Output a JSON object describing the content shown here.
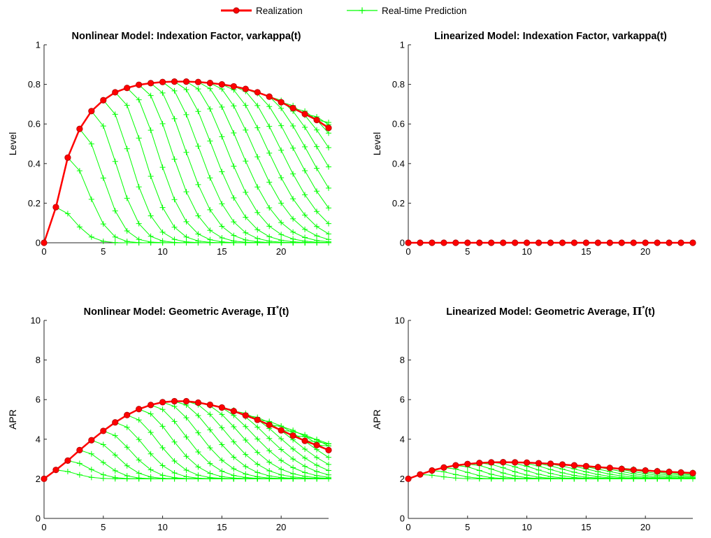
{
  "legend": {
    "realization_label": "Realization",
    "prediction_label": "Real-time Prediction"
  },
  "colors": {
    "realization": "#ff0000",
    "realization_marker_edge": "#b00000",
    "prediction": "#00ff00",
    "axis": "#262626"
  },
  "chart_data": [
    {
      "type": "line",
      "title": "Nonlinear Model: Indexation Factor, varkappa(t)",
      "xlabel": "",
      "ylabel": "Level",
      "xlim": [
        0,
        24
      ],
      "ylim": [
        0,
        1
      ],
      "xticks": [
        0,
        5,
        10,
        15,
        20
      ],
      "yticks": [
        0,
        0.2,
        0.4,
        0.6,
        0.8,
        1
      ],
      "ytick_labels": [
        "0",
        "0.2",
        "0.4",
        "0.6",
        "0.8",
        "1"
      ],
      "grid": false,
      "x": [
        0,
        1,
        2,
        3,
        4,
        5,
        6,
        7,
        8,
        9,
        10,
        11,
        12,
        13,
        14,
        15,
        16,
        17,
        18,
        19,
        20,
        21,
        22,
        23,
        24
      ],
      "series": [
        {
          "name": "Realization",
          "values": [
            0,
            0.18,
            0.43,
            0.575,
            0.665,
            0.72,
            0.76,
            0.782,
            0.798,
            0.806,
            0.812,
            0.814,
            0.814,
            0.812,
            0.807,
            0.8,
            0.79,
            0.777,
            0.76,
            0.738,
            0.71,
            0.68,
            0.65,
            0.62,
            0.58
          ]
        }
      ],
      "predictions": {
        "name": "Real-time Prediction",
        "shape": "hump",
        "floor": 0,
        "count": 23
      }
    },
    {
      "type": "line",
      "title": "Linearized Model: Indexation Factor, varkappa(t)",
      "xlabel": "",
      "ylabel": "Level",
      "xlim": [
        0,
        24
      ],
      "ylim": [
        0,
        1
      ],
      "xticks": [
        0,
        5,
        10,
        15,
        20
      ],
      "yticks": [
        0,
        0.2,
        0.4,
        0.6,
        0.8,
        1
      ],
      "ytick_labels": [
        "0",
        "0.2",
        "0.4",
        "0.6",
        "0.8",
        "1"
      ],
      "grid": false,
      "x": [
        0,
        1,
        2,
        3,
        4,
        5,
        6,
        7,
        8,
        9,
        10,
        11,
        12,
        13,
        14,
        15,
        16,
        17,
        18,
        19,
        20,
        21,
        22,
        23,
        24
      ],
      "series": [
        {
          "name": "Realization",
          "values": [
            0,
            0,
            0,
            0,
            0,
            0,
            0,
            0,
            0,
            0,
            0,
            0,
            0,
            0,
            0,
            0,
            0,
            0,
            0,
            0,
            0,
            0,
            0,
            0,
            0
          ]
        }
      ],
      "predictions": {
        "name": "Real-time Prediction",
        "shape": "flat",
        "floor": 0,
        "count": 23
      }
    },
    {
      "type": "line",
      "title": "Nonlinear Model: Geometric Average, Π*(t)",
      "xlabel": "",
      "ylabel": "APR",
      "xlim": [
        0,
        24
      ],
      "ylim": [
        0,
        10
      ],
      "xticks": [
        0,
        5,
        10,
        15,
        20
      ],
      "yticks": [
        0,
        2,
        4,
        6,
        8,
        10
      ],
      "ytick_labels": [
        "0",
        "2",
        "4",
        "6",
        "8",
        "10"
      ],
      "grid": false,
      "x": [
        0,
        1,
        2,
        3,
        4,
        5,
        6,
        7,
        8,
        9,
        10,
        11,
        12,
        13,
        14,
        15,
        16,
        17,
        18,
        19,
        20,
        21,
        22,
        23,
        24
      ],
      "series": [
        {
          "name": "Realization",
          "values": [
            2.0,
            2.45,
            2.92,
            3.45,
            3.95,
            4.42,
            4.85,
            5.22,
            5.52,
            5.73,
            5.87,
            5.92,
            5.92,
            5.85,
            5.74,
            5.6,
            5.42,
            5.2,
            4.98,
            4.72,
            4.45,
            4.18,
            3.92,
            3.7,
            3.45
          ]
        }
      ],
      "predictions": {
        "name": "Real-time Prediction",
        "shape": "hump",
        "floor": 2.0,
        "count": 23
      }
    },
    {
      "type": "line",
      "title": "Linearized Model: Geometric Average, Π*(t)",
      "xlabel": "",
      "ylabel": "APR",
      "xlim": [
        0,
        24
      ],
      "ylim": [
        0,
        10
      ],
      "xticks": [
        0,
        5,
        10,
        15,
        20
      ],
      "yticks": [
        0,
        2,
        4,
        6,
        8,
        10
      ],
      "ytick_labels": [
        "0",
        "2",
        "4",
        "6",
        "8",
        "10"
      ],
      "grid": false,
      "x": [
        0,
        1,
        2,
        3,
        4,
        5,
        6,
        7,
        8,
        9,
        10,
        11,
        12,
        13,
        14,
        15,
        16,
        17,
        18,
        19,
        20,
        21,
        22,
        23,
        24
      ],
      "series": [
        {
          "name": "Realization",
          "values": [
            2.0,
            2.22,
            2.42,
            2.57,
            2.68,
            2.75,
            2.8,
            2.83,
            2.84,
            2.83,
            2.82,
            2.79,
            2.76,
            2.72,
            2.68,
            2.64,
            2.59,
            2.55,
            2.5,
            2.45,
            2.42,
            2.38,
            2.35,
            2.32,
            2.29
          ]
        }
      ],
      "predictions": {
        "name": "Real-time Prediction",
        "shape": "hump",
        "floor": 2.0,
        "count": 23
      }
    }
  ]
}
